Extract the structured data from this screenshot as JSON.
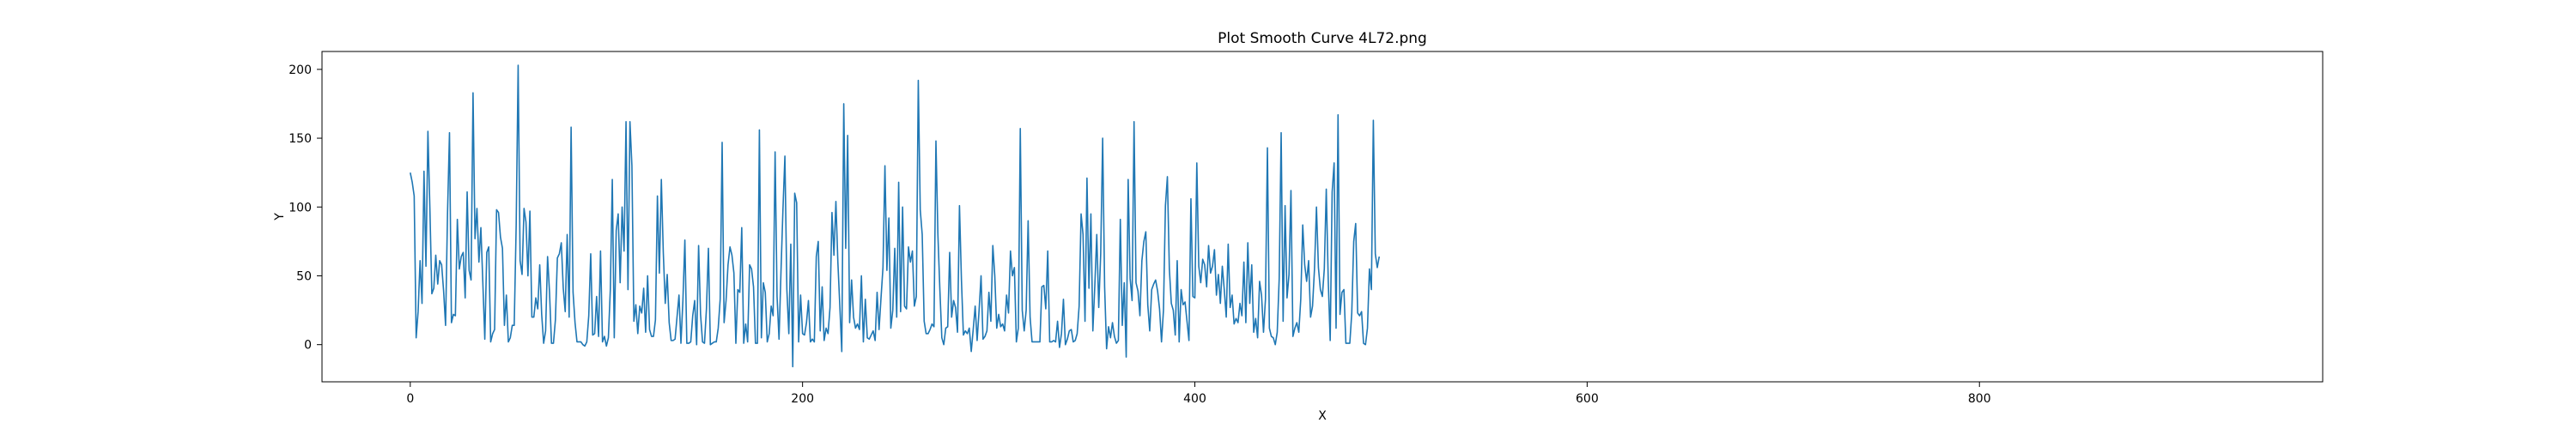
{
  "chart_data": {
    "type": "line",
    "title": "Plot Smooth Curve 4L72.png",
    "xlabel": "X",
    "ylabel": "Y",
    "xlim": [
      -45,
      975
    ],
    "ylim": [
      -27,
      213
    ],
    "xticks": [
      0,
      200,
      400,
      600,
      800
    ],
    "yticks": [
      0,
      50,
      100,
      150,
      200
    ],
    "grid": false,
    "line_color": "#1f77b4",
    "series": [
      {
        "values": [
          125,
          118,
          108,
          5,
          24,
          61,
          30,
          126,
          57,
          155,
          99,
          37,
          41,
          65,
          44,
          61,
          58,
          39,
          14,
          96,
          154,
          16,
          22,
          21,
          91,
          55,
          64,
          67,
          34,
          111,
          54,
          47,
          183,
          77,
          99,
          60,
          85,
          45,
          4,
          67,
          71,
          2,
          8,
          11,
          98,
          96,
          78,
          70,
          14,
          36,
          2,
          5,
          14,
          14,
          87,
          203,
          61,
          51,
          99,
          89,
          50,
          97,
          20,
          20,
          34,
          26,
          58,
          22,
          1,
          10,
          64,
          38,
          1,
          1,
          18,
          63,
          66,
          74,
          41,
          24,
          80,
          20,
          158,
          38,
          16,
          2,
          2,
          2,
          0,
          -1,
          2,
          21,
          66,
          7,
          8,
          35,
          6,
          68,
          2,
          6,
          -1,
          5,
          40,
          120,
          5,
          83,
          95,
          45,
          100,
          68,
          162,
          40,
          162,
          130,
          17,
          29,
          8,
          28,
          23,
          41,
          9,
          50,
          11,
          6,
          6,
          18,
          108,
          52,
          120,
          67,
          30,
          51,
          16,
          3,
          3,
          4,
          20,
          36,
          1,
          32,
          76,
          1,
          1,
          2,
          21,
          32,
          0,
          72,
          22,
          2,
          1,
          26,
          70,
          0,
          1,
          2,
          2,
          12,
          33,
          147,
          16,
          32,
          58,
          71,
          65,
          52,
          1,
          40,
          38,
          85,
          1,
          15,
          2,
          58,
          55,
          42,
          1,
          1,
          156,
          5,
          45,
          38,
          2,
          8,
          28,
          21,
          140,
          35,
          4,
          53,
          98,
          137,
          40,
          8,
          73,
          -16,
          110,
          103,
          2,
          36,
          8,
          7,
          16,
          32,
          2,
          4,
          2,
          64,
          75,
          10,
          42,
          3,
          12,
          8,
          27,
          96,
          65,
          104,
          60,
          28,
          -5,
          175,
          70,
          152,
          16,
          47,
          20,
          12,
          15,
          11,
          50,
          2,
          33,
          5,
          4,
          7,
          10,
          3,
          38,
          11,
          34,
          56,
          130,
          54,
          92,
          12,
          25,
          70,
          20,
          118,
          24,
          100,
          28,
          26,
          71,
          60,
          68,
          28,
          35,
          192,
          98,
          80,
          17,
          8,
          8,
          11,
          15,
          13,
          148,
          80,
          40,
          5,
          0,
          12,
          13,
          67,
          20,
          32,
          27,
          9,
          101,
          47,
          7,
          10,
          8,
          12,
          -5,
          11,
          28,
          3,
          25,
          50,
          4,
          6,
          10,
          38,
          17,
          72,
          50,
          12,
          22,
          13,
          15,
          10,
          36,
          23,
          68,
          50,
          56,
          2,
          12,
          157,
          25,
          10,
          25,
          90,
          20,
          2,
          2,
          2,
          2,
          2,
          42,
          43,
          26,
          68,
          2,
          2,
          3,
          2,
          17,
          -2,
          8,
          33,
          0,
          4,
          10,
          11,
          2,
          3,
          8,
          28,
          95,
          80,
          17,
          121,
          41,
          95,
          10,
          43,
          80,
          27,
          66,
          150,
          42,
          -3,
          13,
          5,
          16,
          6,
          1,
          3,
          91,
          14,
          45,
          -9,
          120,
          48,
          32,
          162,
          45,
          39,
          21,
          61,
          75,
          82,
          29,
          10,
          40,
          44,
          47,
          39,
          26,
          2,
          25,
          101,
          122,
          55,
          30,
          25,
          7,
          61,
          2,
          40,
          29,
          31,
          17,
          3,
          106,
          35,
          34,
          132,
          57,
          45,
          62,
          58,
          42,
          72,
          52,
          57,
          69,
          36,
          51,
          30,
          57,
          40,
          20,
          73,
          27,
          36,
          15,
          19,
          16,
          30,
          21,
          60,
          16,
          74,
          30,
          58,
          9,
          19,
          5,
          46,
          36,
          9,
          33,
          143,
          12,
          6,
          5,
          0,
          9,
          48,
          154,
          17,
          101,
          34,
          51,
          112,
          6,
          12,
          16,
          9,
          33,
          87,
          58,
          46,
          61,
          20,
          28,
          55,
          100,
          56,
          40,
          35,
          55,
          113,
          47,
          3,
          111,
          132,
          12,
          167,
          22,
          38,
          40,
          1,
          1,
          1,
          23,
          75,
          88,
          23,
          21,
          24,
          1,
          0,
          12,
          55,
          40,
          163,
          66,
          56,
          64
        ]
      }
    ]
  }
}
